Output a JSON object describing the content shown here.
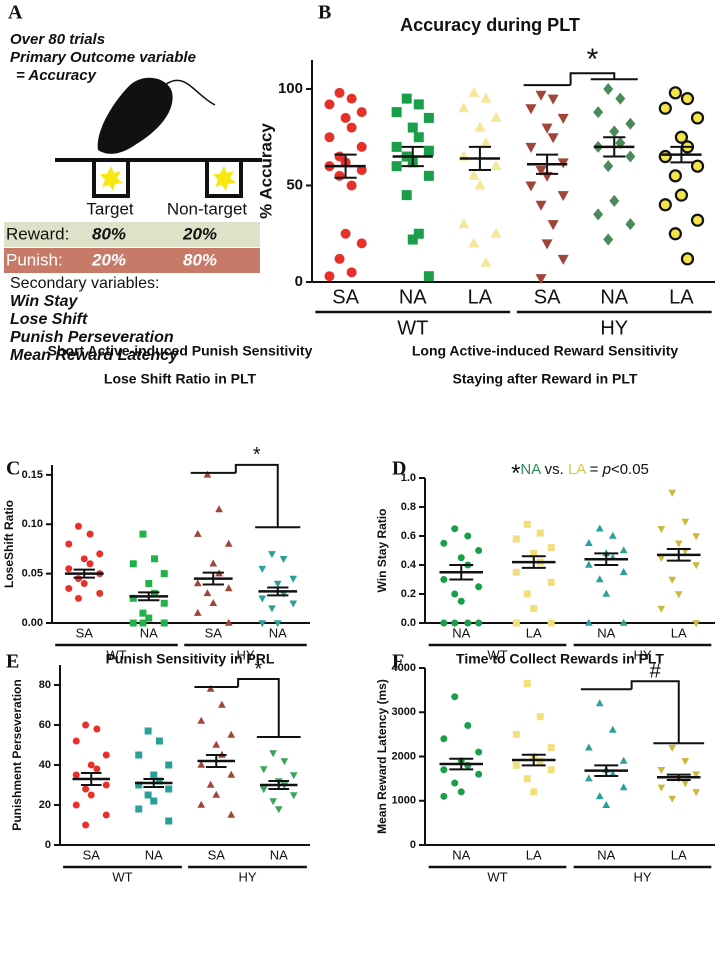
{
  "panel_a": {
    "letter": "A",
    "lines": [
      "Over 80 trials",
      "Primary Outcome variable",
      "=  Accuracy"
    ],
    "target": "Target",
    "nontarget": "Non-target",
    "rows": [
      [
        "Reward:",
        "80%",
        "20%"
      ],
      [
        "Punish:",
        "20%",
        "80%"
      ]
    ],
    "secondary_title": "Secondary variables:",
    "secondary": [
      "Win Stay",
      "Lose Shift",
      "Punish Perseveration",
      "Mean Reward Latency"
    ]
  },
  "chart_data": [
    {
      "type": "dotplot",
      "letter": "B",
      "title": "Accuracy during  PLT",
      "ylabel": "% Accuracy",
      "ylim": [
        0,
        115
      ],
      "yticks": [
        0,
        50,
        100
      ],
      "groups": [
        {
          "name": "WT",
          "color": "#111111",
          "series": [
            {
              "name": "SA",
              "color": "#e8302b",
              "marker": "circle",
              "values": [
                98,
                95,
                92,
                88,
                85,
                80,
                75,
                70,
                65,
                62,
                60,
                58,
                55,
                50,
                25,
                20,
                12,
                5,
                3
              ],
              "mean": 60,
              "sem": 6
            },
            {
              "name": "NA",
              "color": "#1a9e4a",
              "marker": "square",
              "values": [
                95,
                92,
                88,
                85,
                80,
                75,
                70,
                68,
                65,
                62,
                60,
                55,
                45,
                25,
                22,
                3
              ],
              "mean": 65,
              "sem": 5
            },
            {
              "name": "LA",
              "color": "#f5e79a",
              "marker": "triangle-up",
              "values": [
                98,
                95,
                90,
                85,
                80,
                72,
                65,
                60,
                55,
                50,
                30,
                25,
                20,
                10
              ],
              "mean": 64,
              "sem": 6
            }
          ]
        },
        {
          "name": "HY",
          "color": "#111111",
          "bracket": {
            "text": "*",
            "left": 102,
            "right": 105
          },
          "series": [
            {
              "name": "SA",
              "color": "#a0453a",
              "marker": "triangle-down",
              "values": [
                97,
                95,
                90,
                85,
                80,
                75,
                70,
                62,
                58,
                55,
                50,
                45,
                40,
                30,
                20,
                12,
                2
              ],
              "mean": 61,
              "sem": 5
            },
            {
              "name": "NA",
              "color": "#4a8a5a",
              "marker": "diamond",
              "values": [
                100,
                95,
                88,
                82,
                78,
                72,
                70,
                65,
                60,
                42,
                35,
                30,
                22
              ],
              "mean": 70,
              "sem": 5
            },
            {
              "name": "LA",
              "color": "#111111",
              "marker": "ring",
              "values": [
                98,
                95,
                90,
                85,
                75,
                70,
                65,
                60,
                55,
                45,
                40,
                32,
                25,
                12
              ],
              "mean": 66,
              "sem": 4
            }
          ]
        }
      ]
    },
    {
      "type": "dotplot",
      "letter": "C",
      "heading": "Short Active-induced Punish Sensitivity",
      "subtitle": "Lose Shift Ratio in  PLT",
      "ylabel": "LoseShift Ratio",
      "ylim": [
        0,
        0.16
      ],
      "yticks": [
        {
          "value": 0,
          "label": "0.00"
        },
        0.05,
        {
          "value": 0.1,
          "label": "0.10"
        },
        0.15
      ],
      "groups": [
        {
          "name": "WT",
          "color": "#111111",
          "series": [
            {
              "name": "SA",
              "color": "#e8302b",
              "marker": "circle",
              "values": [
                0.098,
                0.09,
                0.08,
                0.07,
                0.065,
                0.06,
                0.055,
                0.05,
                0.045,
                0.04,
                0.035,
                0.03,
                0.025
              ],
              "mean": 0.05,
              "sem": 0.004
            },
            {
              "name": "NA",
              "color": "#22b24c",
              "marker": "square",
              "values": [
                0.09,
                0.065,
                0.06,
                0.05,
                0.04,
                0.03,
                0.025,
                0.02,
                0.01,
                0.005,
                0,
                0,
                0
              ],
              "mean": 0.027,
              "sem": 0.004
            }
          ]
        },
        {
          "name": "HY",
          "color": "#111111",
          "bracket": {
            "text": "*",
            "left": 0.152,
            "right": 0.097
          },
          "series": [
            {
              "name": "SA",
              "color": "#a0453a",
              "marker": "triangle-up",
              "values": [
                0.15,
                0.115,
                0.09,
                0.08,
                0.06,
                0.05,
                0.04,
                0.035,
                0.03,
                0.02,
                0.01,
                0
              ],
              "mean": 0.045,
              "sem": 0.006
            },
            {
              "name": "NA",
              "color": "#2aa09a",
              "marker": "triangle-down",
              "values": [
                0.07,
                0.065,
                0.055,
                0.045,
                0.04,
                0.03,
                0.025,
                0.02,
                0.015,
                0,
                0
              ],
              "mean": 0.032,
              "sem": 0.004
            }
          ]
        }
      ]
    },
    {
      "type": "dotplot",
      "letter": "D",
      "heading": "Long  Active-induced Reward Sensitivity",
      "subtitle": "Staying after Reward  in  PLT",
      "ylabel": "Win Stay Ratio",
      "note": [
        {
          "text": "*",
          "color": "#111111"
        },
        {
          "text": "NA",
          "color": "#2e8b57"
        },
        {
          "text": " vs. ",
          "color": "#111111"
        },
        {
          "text": "LA",
          "color": "#d9c84a"
        },
        {
          "text": " = ",
          "color": "#111111"
        },
        {
          "text": "p",
          "color": "#111111"
        },
        {
          "text": "<0.05",
          "color": "#111111"
        }
      ],
      "ylim": [
        0,
        1
      ],
      "yticks": [
        {
          "value": 0,
          "label": "0.0"
        },
        0.2,
        0.4,
        0.6,
        0.8,
        {
          "value": 1,
          "label": "1.0"
        }
      ],
      "groups": [
        {
          "name": "WT",
          "color": "#111111",
          "series": [
            {
              "name": "NA",
              "color": "#1a9e4a",
              "marker": "circle",
              "values": [
                0.65,
                0.6,
                0.55,
                0.5,
                0.45,
                0.4,
                0.3,
                0.25,
                0.2,
                0.15,
                0,
                0,
                0,
                0
              ],
              "mean": 0.35,
              "sem": 0.05
            },
            {
              "name": "LA",
              "color": "#f2df7a",
              "marker": "square",
              "values": [
                0.68,
                0.62,
                0.58,
                0.52,
                0.48,
                0.42,
                0.35,
                0.28,
                0.2,
                0.1,
                0,
                0
              ],
              "mean": 0.42,
              "sem": 0.04
            }
          ]
        },
        {
          "name": "HY",
          "color": "#111111",
          "series": [
            {
              "name": "NA",
              "color": "#2aa09a",
              "marker": "triangle-up",
              "values": [
                0.65,
                0.6,
                0.55,
                0.5,
                0.48,
                0.45,
                0.4,
                0.35,
                0.3,
                0.2,
                0,
                0
              ],
              "mean": 0.44,
              "sem": 0.04
            },
            {
              "name": "LA",
              "color": "#c9b93a",
              "marker": "triangle-down",
              "values": [
                0.9,
                0.7,
                0.65,
                0.6,
                0.55,
                0.5,
                0.45,
                0.4,
                0.3,
                0.2,
                0.1,
                0
              ],
              "mean": 0.47,
              "sem": 0.04
            }
          ]
        }
      ]
    },
    {
      "type": "dotplot",
      "letter": "E",
      "title": "Punish Sensitivity in  PRL",
      "ylabel": "Punishment Perseveration",
      "ylim": [
        0,
        90
      ],
      "yticks": [
        0,
        20,
        40,
        60,
        80
      ],
      "groups": [
        {
          "name": "WT",
          "color": "#999999",
          "series": [
            {
              "name": "SA",
              "color": "#e8302b",
              "marker": "circle",
              "values": [
                60,
                58,
                52,
                45,
                40,
                38,
                35,
                30,
                28,
                25,
                20,
                15,
                10
              ],
              "mean": 33,
              "sem": 3
            },
            {
              "name": "NA",
              "color": "#2aa09a",
              "marker": "square",
              "values": [
                57,
                52,
                45,
                40,
                35,
                32,
                30,
                28,
                25,
                22,
                18,
                12
              ],
              "mean": 31,
              "sem": 2
            }
          ]
        },
        {
          "name": "HY",
          "color": "#111111",
          "bracket": {
            "text": "*",
            "left": 79,
            "right": 54
          },
          "series": [
            {
              "name": "SA",
              "color": "#a0453a",
              "marker": "triangle-up",
              "values": [
                78,
                70,
                62,
                55,
                50,
                45,
                40,
                35,
                30,
                25,
                20,
                15
              ],
              "mean": 42,
              "sem": 3
            },
            {
              "name": "NA",
              "color": "#3aa65a",
              "marker": "triangle-down",
              "values": [
                46,
                42,
                38,
                35,
                32,
                30,
                28,
                25,
                22,
                18
              ],
              "mean": 30,
              "sem": 2
            }
          ]
        }
      ]
    },
    {
      "type": "dotplot",
      "letter": "F",
      "title": "Time to Collect Rewards in  PLT",
      "ylabel": "Mean Reward  Latency  (ms)",
      "ylim": [
        0,
        4000
      ],
      "yticks": [
        0,
        1000,
        2000,
        3000,
        4000
      ],
      "groups": [
        {
          "name": "WT",
          "color": "#999999",
          "series": [
            {
              "name": "NA",
              "color": "#1a9e4a",
              "marker": "circle",
              "values": [
                3350,
                2700,
                2400,
                2100,
                1900,
                1800,
                1700,
                1600,
                1400,
                1200,
                1100
              ],
              "mean": 1830,
              "sem": 120
            },
            {
              "name": "LA",
              "color": "#f2df7a",
              "marker": "square",
              "values": [
                3650,
                2900,
                2500,
                2200,
                2000,
                1900,
                1800,
                1700,
                1500,
                1200
              ],
              "mean": 1920,
              "sem": 120
            }
          ]
        },
        {
          "name": "HY",
          "color": "#111111",
          "bracket": {
            "text": "#",
            "left": 3520,
            "right": 2300
          },
          "series": [
            {
              "name": "NA",
              "color": "#2aa09a",
              "marker": "triangle-up",
              "values": [
                3200,
                2600,
                2200,
                1900,
                1700,
                1600,
                1500,
                1300,
                1100,
                900
              ],
              "mean": 1680,
              "sem": 120
            },
            {
              "name": "LA",
              "color": "#c9b93a",
              "marker": "triangle-down",
              "values": [
                2200,
                1900,
                1700,
                1600,
                1500,
                1400,
                1300,
                1200,
                1050
              ],
              "mean": 1530,
              "sem": 60
            }
          ]
        }
      ]
    }
  ]
}
